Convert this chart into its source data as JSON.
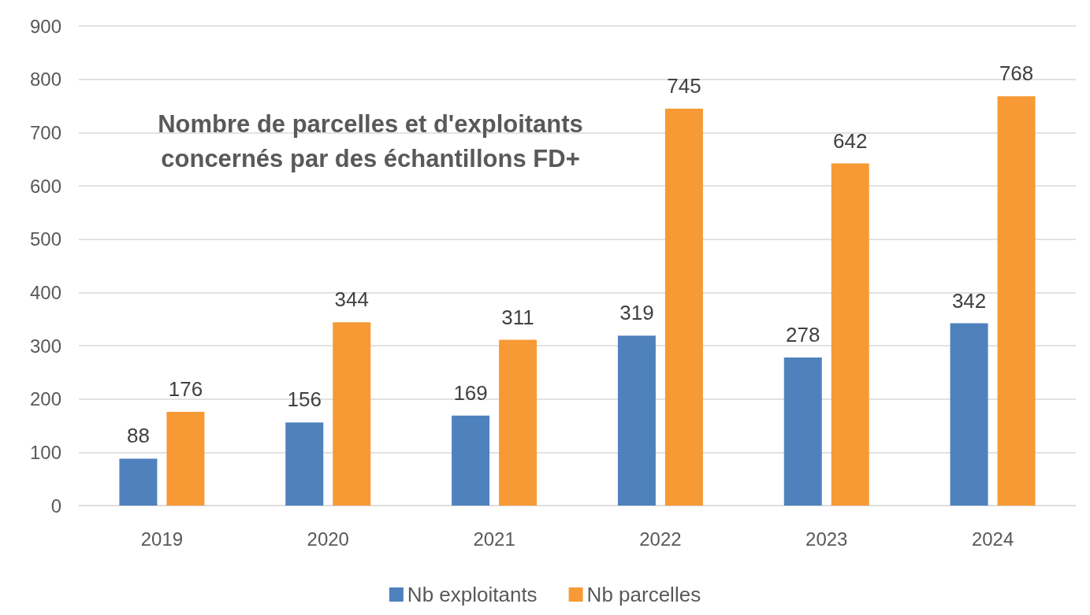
{
  "chart_data": {
    "type": "bar",
    "title": "Nombre de parcelles et d'exploitants\nconcernés par des échantillons FD+",
    "categories": [
      "2019",
      "2020",
      "2021",
      "2022",
      "2023",
      "2024"
    ],
    "series": [
      {
        "name": "Nb exploitants",
        "color": "#4f81bd",
        "values": [
          88,
          156,
          169,
          319,
          278,
          342
        ]
      },
      {
        "name": "Nb parcelles",
        "color": "#f79a35",
        "values": [
          176,
          344,
          311,
          745,
          642,
          768
        ]
      }
    ],
    "ylim": [
      0,
      900
    ],
    "yticks": [
      0,
      100,
      200,
      300,
      400,
      500,
      600,
      700,
      800,
      900
    ],
    "grid": "y",
    "legend": "bottom",
    "data_labels": true
  }
}
